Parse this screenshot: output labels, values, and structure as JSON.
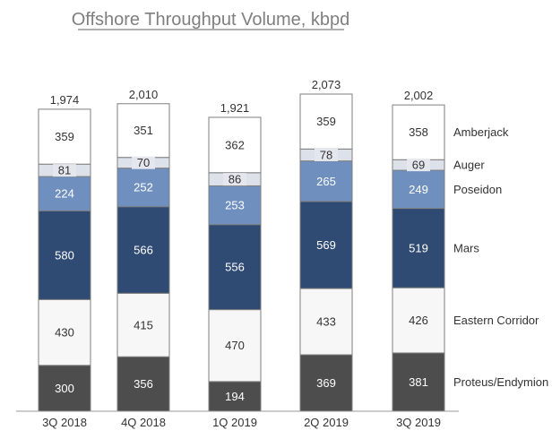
{
  "chart_data": {
    "type": "bar",
    "stacked": true,
    "title": "Offshore Throughput Volume, kbpd",
    "xlabel": "",
    "ylabel": "",
    "categories": [
      "3Q 2018",
      "4Q 2018",
      "1Q 2019",
      "2Q 2019",
      "3Q 2019"
    ],
    "totals": [
      "1,974",
      "2,010",
      "1,921",
      "2,073",
      "2,002"
    ],
    "series": [
      {
        "name": "Proteus/Endymion",
        "values": [
          300,
          356,
          194,
          369,
          381
        ],
        "color": "#4d4d4d",
        "text_color": "#ffffff"
      },
      {
        "name": "Eastern Corridor",
        "values": [
          430,
          415,
          470,
          433,
          426
        ],
        "color": "#f7f7f7",
        "text_color": "#333333"
      },
      {
        "name": "Mars",
        "values": [
          580,
          566,
          556,
          569,
          519
        ],
        "color": "#2f4a73",
        "text_color": "#ffffff"
      },
      {
        "name": "Poseidon",
        "values": [
          224,
          252,
          253,
          265,
          249
        ],
        "color": "#6f8fbf",
        "text_color": "#ffffff"
      },
      {
        "name": "Auger",
        "values": [
          81,
          70,
          86,
          78,
          69
        ],
        "color": "#dde1ea",
        "text_color": "#333333"
      },
      {
        "name": "Amberjack",
        "values": [
          359,
          351,
          362,
          359,
          358
        ],
        "color": "#ffffff",
        "text_color": "#333333"
      }
    ],
    "ylim": [
      0,
      2073
    ],
    "grid": false,
    "legend": "right, aligned with segments"
  }
}
